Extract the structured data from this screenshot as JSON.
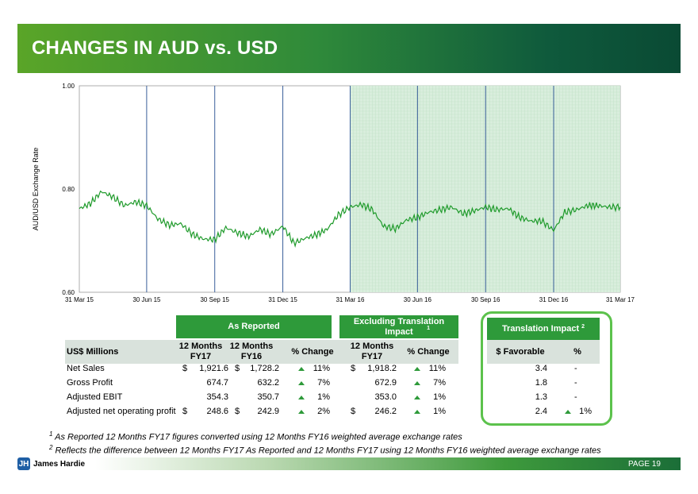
{
  "header": {
    "title": "CHANGES IN AUD vs. USD"
  },
  "chart_data": {
    "type": "line",
    "ylabel": "AUD/USD Exchange Rate",
    "ylim": [
      0.6,
      1.0
    ],
    "y_ticks": [
      "1.00",
      "0.80",
      "0.60"
    ],
    "x_ticks": [
      "31 Mar 15",
      "30 Jun 15",
      "30 Sep 15",
      "31 Dec 15",
      "31 Mar 16",
      "30 Jun 16",
      "30 Sep 16",
      "31 Dec 16",
      "31 Mar 17"
    ],
    "shaded_region": [
      "31 Mar 16",
      "31 Mar 17"
    ],
    "series": [
      {
        "name": "",
        "x": [
          "31 Mar 15",
          "15 Apr 15",
          "30 Apr 15",
          "15 May 15",
          "31 May 15",
          "15 Jun 15",
          "30 Jun 15",
          "15 Jul 15",
          "31 Jul 15",
          "15 Aug 15",
          "31 Aug 15",
          "15 Sep 15",
          "30 Sep 15",
          "15 Oct 15",
          "31 Oct 15",
          "15 Nov 15",
          "30 Nov 15",
          "15 Dec 15",
          "31 Dec 15",
          "15 Jan 16",
          "31 Jan 16",
          "15 Feb 16",
          "29 Feb 16",
          "15 Mar 16",
          "31 Mar 16",
          "15 Apr 16",
          "30 Apr 16",
          "15 May 16",
          "31 May 16",
          "15 Jun 16",
          "30 Jun 16",
          "15 Jul 16",
          "31 Jul 16",
          "15 Aug 16",
          "31 Aug 16",
          "15 Sep 16",
          "30 Sep 16",
          "15 Oct 16",
          "31 Oct 16",
          "15 Nov 16",
          "30 Nov 16",
          "15 Dec 16",
          "31 Dec 16",
          "15 Jan 17",
          "31 Jan 17",
          "15 Feb 17",
          "28 Feb 17",
          "15 Mar 17",
          "31 Mar 17"
        ],
        "values": [
          0.762,
          0.772,
          0.795,
          0.785,
          0.768,
          0.775,
          0.768,
          0.742,
          0.73,
          0.733,
          0.712,
          0.703,
          0.702,
          0.725,
          0.715,
          0.708,
          0.722,
          0.712,
          0.728,
          0.695,
          0.705,
          0.712,
          0.722,
          0.75,
          0.765,
          0.77,
          0.76,
          0.728,
          0.723,
          0.74,
          0.745,
          0.755,
          0.76,
          0.765,
          0.752,
          0.758,
          0.765,
          0.76,
          0.762,
          0.745,
          0.738,
          0.738,
          0.72,
          0.755,
          0.76,
          0.768,
          0.768,
          0.765,
          0.765
        ]
      }
    ]
  },
  "table": {
    "group_as_reported": "As Reported",
    "group_excluding": "Excluding Translation Impact",
    "group_excluding_sup": "1",
    "group_translation": "Translation Impact",
    "group_translation_sup": "2",
    "col_label": "US$ Millions",
    "col_fy17": "12 Months FY17",
    "col_fy16": "12 Months FY16",
    "col_change": "% Change",
    "col_ex_fy17": "12 Months FY17",
    "col_ex_change": "% Change",
    "col_favorable": "$ Favorable",
    "col_pct": "%",
    "rows": [
      {
        "label": "Net Sales",
        "cur1": "$",
        "fy17": "1,921.6",
        "cur2": "$",
        "fy16": "1,728.2",
        "change": "11%",
        "cur3": "$",
        "ex_fy17": "1,918.2",
        "ex_change": "11%",
        "favorable": "3.4",
        "pct": "-",
        "pct_up": false
      },
      {
        "label": "Gross Profit",
        "cur1": "",
        "fy17": "674.7",
        "cur2": "",
        "fy16": "632.2",
        "change": "7%",
        "cur3": "",
        "ex_fy17": "672.9",
        "ex_change": "7%",
        "favorable": "1.8",
        "pct": "-",
        "pct_up": false
      },
      {
        "label": "Adjusted EBIT",
        "cur1": "",
        "fy17": "354.3",
        "cur2": "",
        "fy16": "350.7",
        "change": "1%",
        "cur3": "",
        "ex_fy17": "353.0",
        "ex_change": "1%",
        "favorable": "1.3",
        "pct": "-",
        "pct_up": false
      },
      {
        "label": "Adjusted net operating profit",
        "cur1": "$",
        "fy17": "248.6",
        "cur2": "$",
        "fy16": "242.9",
        "change": "2%",
        "cur3": "$",
        "ex_fy17": "246.2",
        "ex_change": "1%",
        "favorable": "2.4",
        "pct": "1%",
        "pct_up": true
      }
    ]
  },
  "footnotes": [
    {
      "mark": "1",
      "text": "As Reported 12 Months FY17 figures converted using 12 Months FY16 weighted average exchange rates"
    },
    {
      "mark": "2",
      "text": "Reflects the difference between 12 Months FY17 As Reported and 12 Months FY17 using 12 Months FY16 weighted average exchange rates"
    }
  ],
  "footer": {
    "logo_text": "James Hardie",
    "page_label": "PAGE  19"
  },
  "colors": {
    "accent_green": "#2e9a3a",
    "shade": "#d9eedd",
    "line": "#1e9a2a",
    "vline": "#3a5f9a"
  }
}
